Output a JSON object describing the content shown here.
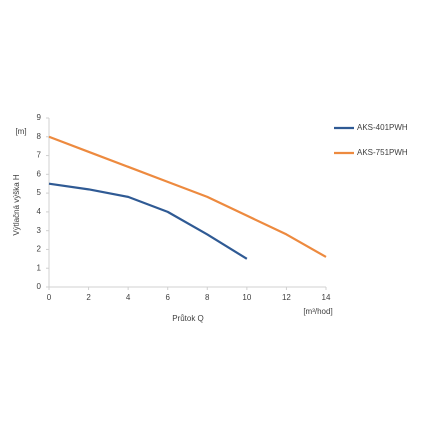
{
  "chart_data": {
    "type": "line",
    "y_label": "Výtlačná výška H",
    "y_unit": "[m]",
    "x_label": "Průtok Q",
    "x_unit": "[m³/hod]",
    "xlim": [
      0,
      14
    ],
    "xticks": [
      0,
      2,
      4,
      6,
      8,
      10,
      12,
      14
    ],
    "ylim": [
      0,
      9
    ],
    "yticks": [
      0,
      1,
      2,
      3,
      4,
      5,
      6,
      7,
      8,
      9
    ],
    "grid": false,
    "legend": "right",
    "series": [
      {
        "name": "AKS-401PWH",
        "color": "#2f5a94",
        "x": [
          0,
          2,
          4,
          6,
          8,
          10
        ],
        "values": [
          5.5,
          5.2,
          4.8,
          4.0,
          2.8,
          1.5
        ]
      },
      {
        "name": "AKS-751PWH",
        "color": "#ed8a3f",
        "x": [
          0,
          2,
          4,
          6,
          8,
          10,
          12,
          14
        ],
        "values": [
          8.0,
          7.2,
          6.4,
          5.6,
          4.8,
          3.8,
          2.8,
          1.6
        ]
      }
    ]
  }
}
